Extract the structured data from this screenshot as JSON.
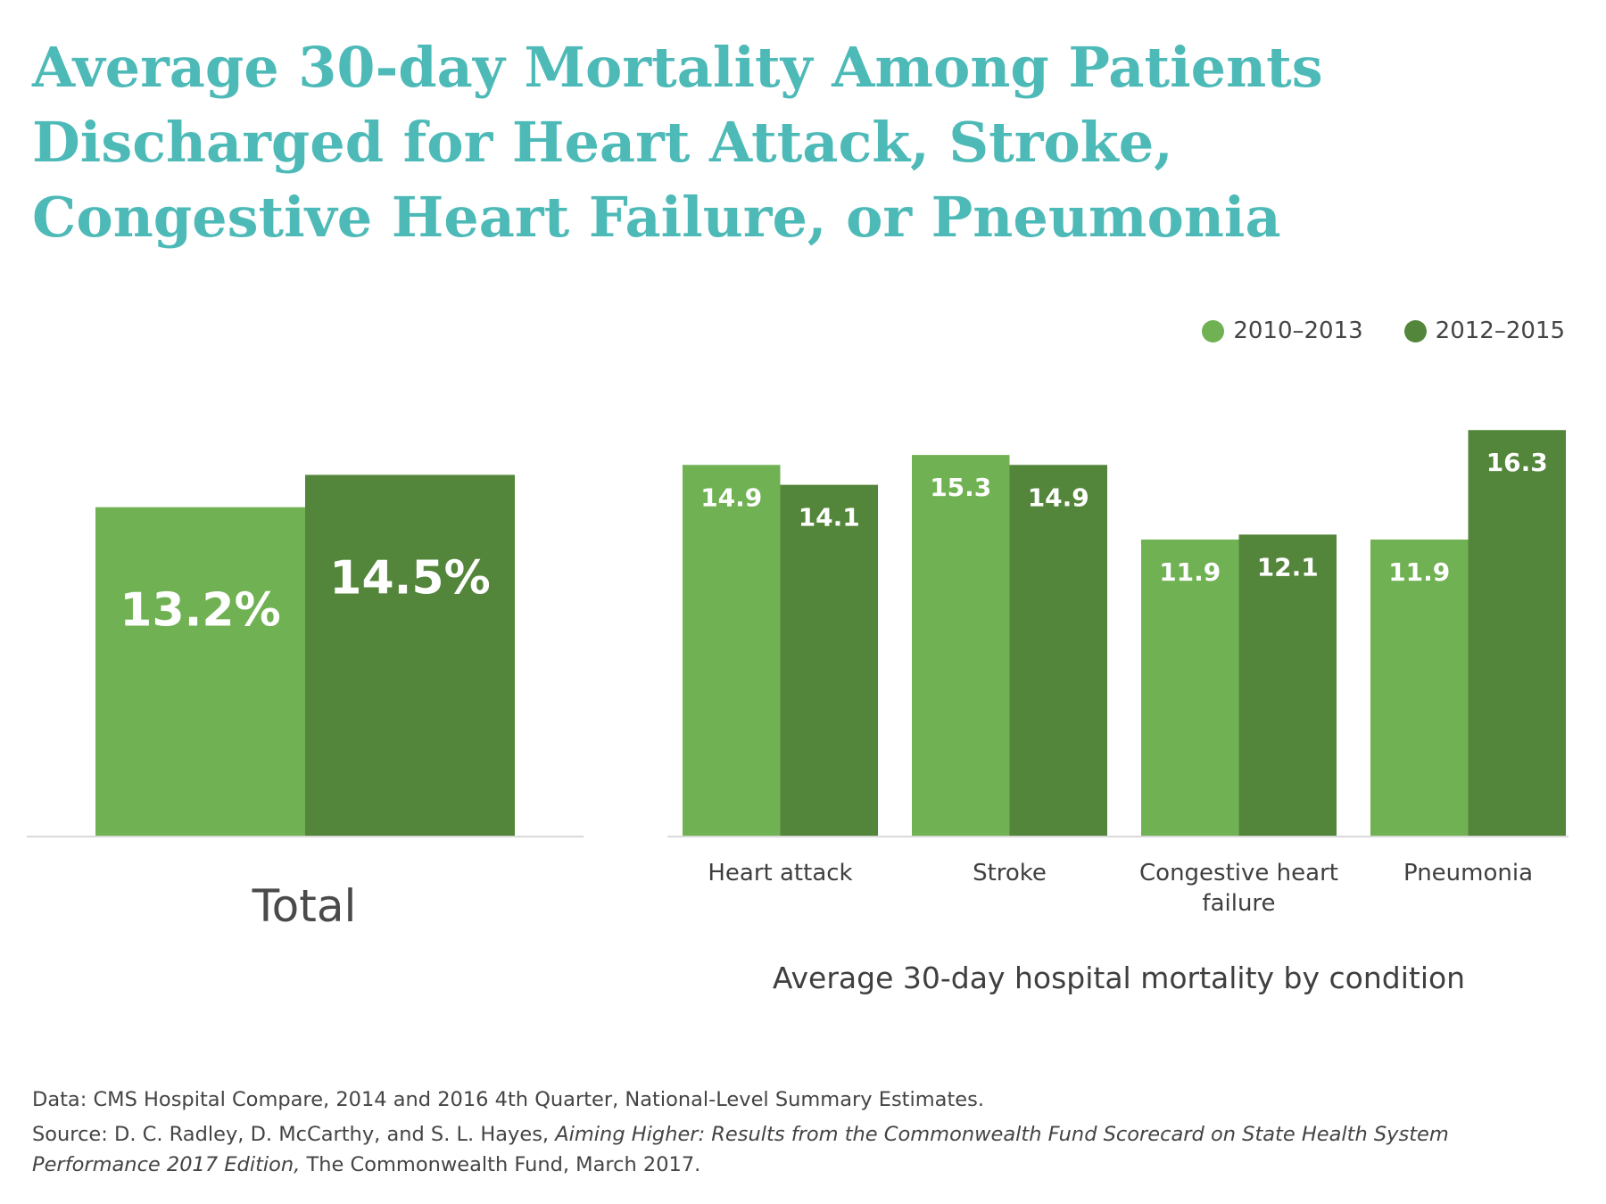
{
  "title_lines": [
    "Average 30-day Mortality Among Patients",
    "Discharged for Heart Attack, Stroke,",
    "Congestive Heart Failure, or Pneumonia"
  ],
  "colors": {
    "title": "#4dbab8",
    "series_a": "#70b153",
    "series_b": "#53853a",
    "axis": "#d9d9d9"
  },
  "legend": [
    {
      "label": "2010–2013",
      "color": "#70b153"
    },
    {
      "label": "2012–2015",
      "color": "#53853a"
    }
  ],
  "chart_data": [
    {
      "type": "bar",
      "categories": [
        "Total"
      ],
      "series": [
        {
          "name": "2010–2013",
          "values": [
            13.2
          ],
          "labels": [
            "13.2%"
          ]
        },
        {
          "name": "2012–2015",
          "values": [
            14.5
          ],
          "labels": [
            "14.5%"
          ]
        }
      ],
      "ylim": [
        0,
        17
      ]
    },
    {
      "type": "bar",
      "title": "Average 30-day hospital mortality by condition",
      "categories": [
        "Heart attack",
        "Stroke",
        "Congestive heart failure",
        "Pneumonia"
      ],
      "category_lines": [
        [
          "Heart attack"
        ],
        [
          "Stroke"
        ],
        [
          "Congestive heart",
          "failure"
        ],
        [
          "Pneumonia"
        ]
      ],
      "series": [
        {
          "name": "2010–2013",
          "values": [
            14.9,
            15.3,
            11.9,
            11.9
          ],
          "labels": [
            "14.9",
            "15.3",
            "11.9",
            "11.9"
          ]
        },
        {
          "name": "2012–2015",
          "values": [
            14.1,
            14.9,
            12.1,
            16.3
          ],
          "labels": [
            "14.1",
            "14.9",
            "12.1",
            "16.3"
          ]
        }
      ],
      "ylim": [
        0,
        17
      ]
    }
  ],
  "footer": {
    "data_line": "Data: CMS Hospital Compare, 2014 and 2016 4th Quarter, National-Level Summary Estimates.",
    "source_prefix": "Source: D. C. Radley, D. McCarthy, and S. L. Hayes, ",
    "source_italic": "Aiming Higher: Results from the Commonwealth Fund Scorecard on State Health System Performance 2017 Edition,",
    "source_suffix": " The Commonwealth Fund, March 2017."
  }
}
